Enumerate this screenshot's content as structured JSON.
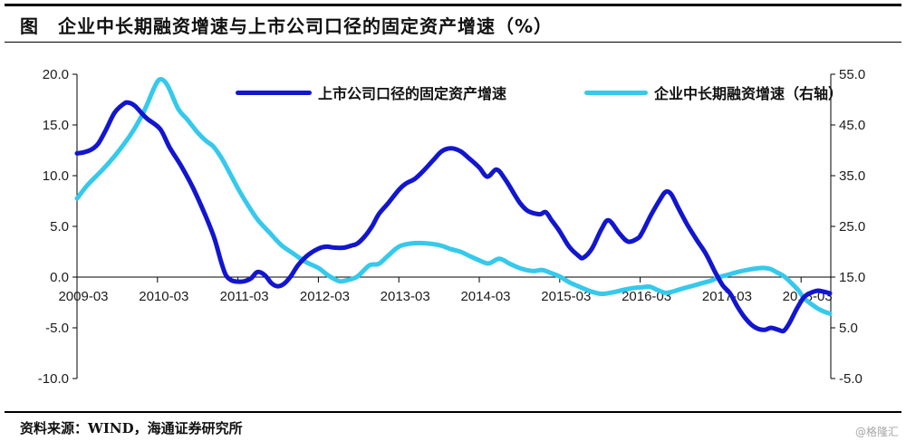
{
  "page": {
    "title": "图　企业中长期融资增速与上市公司口径的固定资产增速（%）",
    "footer": {
      "source_label": "资料来源：WIND，海通证券研究所",
      "watermark": "@格隆汇"
    }
  },
  "chart_data": {
    "type": "line",
    "title": "企业中长期融资增速与上市公司口径的固定资产增速（%）",
    "legend_position": "top-center",
    "grid": false,
    "x_axis": {
      "unit": "months since 2009-03",
      "tick_labels": [
        "2009-03",
        "2010-03",
        "2011-03",
        "2012-03",
        "2013-03",
        "2014-03",
        "2015-03",
        "2016-03",
        "2017-03",
        "2018-03"
      ],
      "tick_months": [
        0,
        12,
        24,
        36,
        48,
        60,
        72,
        84,
        96,
        108
      ],
      "data_end_month": 112.3
    },
    "left_axis": {
      "range": [
        -10,
        20
      ],
      "ticks": [
        20,
        15,
        10,
        5,
        0,
        -5,
        -10
      ],
      "tick_labels": [
        "20.0",
        "15.0",
        "10.0",
        "5.0",
        "0.0",
        "-5.0",
        "-10.0"
      ]
    },
    "right_axis": {
      "range": [
        -5,
        55
      ],
      "ticks": [
        55,
        45,
        35,
        25,
        15,
        5,
        -5
      ],
      "tick_labels": [
        "55.0",
        "45.0",
        "35.0",
        "25.0",
        "15.0",
        "5.0",
        "-5.0"
      ]
    },
    "legend": [
      {
        "label": "上市公司口径的固定资产增速",
        "color": "#1216CF",
        "axis": "left"
      },
      {
        "label": "企业中长期融资增速（右轴）",
        "color": "#35C9EC",
        "axis": "right"
      }
    ],
    "series": [
      {
        "name": "上市公司口径的固定资产增速",
        "axis": "left",
        "color": "#1216CF",
        "points": [
          [
            0,
            12.2
          ],
          [
            1,
            12.3
          ],
          [
            2.2,
            12.6
          ],
          [
            3.2,
            13.2
          ],
          [
            4.3,
            14.5
          ],
          [
            5.6,
            16.2
          ],
          [
            7,
            17.1
          ],
          [
            7.7,
            17.2
          ],
          [
            8.6,
            16.9
          ],
          [
            9.6,
            16.2
          ],
          [
            10.5,
            15.6
          ],
          [
            12.4,
            14.6
          ],
          [
            13.8,
            12.8
          ],
          [
            15.5,
            11.0
          ],
          [
            17.3,
            8.8
          ],
          [
            19.2,
            6.0
          ],
          [
            20.5,
            3.8
          ],
          [
            21.5,
            1.5
          ],
          [
            22.2,
            0.2
          ],
          [
            23,
            -0.3
          ],
          [
            24,
            -0.45
          ],
          [
            25,
            -0.4
          ],
          [
            26,
            -0.1
          ],
          [
            26.9,
            0.5
          ],
          [
            28,
            0.2
          ],
          [
            29,
            -0.6
          ],
          [
            29.9,
            -0.9
          ],
          [
            30.8,
            -0.7
          ],
          [
            31.8,
            0.0
          ],
          [
            33,
            1.2
          ],
          [
            34.5,
            2.2
          ],
          [
            36,
            2.8
          ],
          [
            37.2,
            3.0
          ],
          [
            38.4,
            2.9
          ],
          [
            39.8,
            2.9
          ],
          [
            40.9,
            3.1
          ],
          [
            41.8,
            3.3
          ],
          [
            42.9,
            4.0
          ],
          [
            44,
            5.0
          ],
          [
            45,
            6.2
          ],
          [
            46.3,
            7.2
          ],
          [
            48,
            8.6
          ],
          [
            49,
            9.2
          ],
          [
            50.4,
            9.7
          ],
          [
            51.7,
            10.5
          ],
          [
            53.1,
            11.5
          ],
          [
            54.4,
            12.4
          ],
          [
            55.8,
            12.7
          ],
          [
            57.2,
            12.4
          ],
          [
            58.5,
            11.7
          ],
          [
            60,
            10.8
          ],
          [
            61.2,
            9.9
          ],
          [
            62.6,
            10.6
          ],
          [
            63.9,
            9.6
          ],
          [
            65.3,
            8.1
          ],
          [
            66.2,
            7.2
          ],
          [
            67.3,
            6.5
          ],
          [
            69,
            6.2
          ],
          [
            69.9,
            6.4
          ],
          [
            70.8,
            5.6
          ],
          [
            72,
            4.5
          ],
          [
            73.4,
            3.0
          ],
          [
            74.8,
            2.1
          ],
          [
            75.5,
            1.9
          ],
          [
            76.8,
            2.8
          ],
          [
            78.2,
            4.7
          ],
          [
            79.3,
            5.6
          ],
          [
            80.9,
            4.3
          ],
          [
            82.2,
            3.5
          ],
          [
            83.6,
            3.8
          ],
          [
            84.3,
            4.4
          ],
          [
            85.6,
            6.1
          ],
          [
            87,
            7.7
          ],
          [
            87.8,
            8.4
          ],
          [
            88.6,
            8.2
          ],
          [
            89.7,
            6.8
          ],
          [
            91,
            5.2
          ],
          [
            92.4,
            3.7
          ],
          [
            93.8,
            2.3
          ],
          [
            95.1,
            0.6
          ],
          [
            96.3,
            -0.8
          ],
          [
            97.4,
            -1.6
          ],
          [
            98.5,
            -2.9
          ],
          [
            99.5,
            -3.9
          ],
          [
            100.6,
            -4.7
          ],
          [
            101.6,
            -5.1
          ],
          [
            102.6,
            -5.2
          ],
          [
            103.5,
            -5.0
          ],
          [
            104.6,
            -5.2
          ],
          [
            105.4,
            -5.3
          ],
          [
            106.2,
            -4.6
          ],
          [
            107.3,
            -3.2
          ],
          [
            108.4,
            -2.0
          ],
          [
            109.3,
            -1.6
          ],
          [
            110.4,
            -1.35
          ],
          [
            111.4,
            -1.45
          ],
          [
            112.3,
            -1.6
          ]
        ]
      },
      {
        "name": "企业中长期融资增速（右轴）",
        "axis": "right",
        "color": "#35C9EC",
        "points": [
          [
            0,
            30.5
          ],
          [
            1.6,
            33.2
          ],
          [
            3.9,
            36.3
          ],
          [
            6,
            39.5
          ],
          [
            8.3,
            43.7
          ],
          [
            10.1,
            48.0
          ],
          [
            11.5,
            52.3
          ],
          [
            12.4,
            54.0
          ],
          [
            13.5,
            52.8
          ],
          [
            15.1,
            48.2
          ],
          [
            16.5,
            46.0
          ],
          [
            18,
            43.5
          ],
          [
            19.3,
            41.8
          ],
          [
            20.3,
            40.8
          ],
          [
            21.5,
            38.6
          ],
          [
            22.8,
            35.5
          ],
          [
            24,
            32.5
          ],
          [
            25.2,
            29.8
          ],
          [
            26.9,
            26.4
          ],
          [
            28.7,
            23.8
          ],
          [
            30.4,
            21.4
          ],
          [
            32.3,
            19.6
          ],
          [
            34.1,
            18.0
          ],
          [
            36,
            16.8
          ],
          [
            37.5,
            15.3
          ],
          [
            39.1,
            14.2
          ],
          [
            40.3,
            14.4
          ],
          [
            41.8,
            15.1
          ],
          [
            43.6,
            17.3
          ],
          [
            45,
            17.6
          ],
          [
            46.3,
            19.1
          ],
          [
            48,
            21.0
          ],
          [
            49.7,
            21.6
          ],
          [
            51.7,
            21.7
          ],
          [
            54,
            21.3
          ],
          [
            55.8,
            20.5
          ],
          [
            57.2,
            20.0
          ],
          [
            58.5,
            19.2
          ],
          [
            60,
            18.3
          ],
          [
            61.4,
            17.7
          ],
          [
            63,
            18.6
          ],
          [
            64.6,
            17.6
          ],
          [
            66.2,
            16.7
          ],
          [
            68,
            16.2
          ],
          [
            69.4,
            16.4
          ],
          [
            70.7,
            15.8
          ],
          [
            72,
            15.1
          ],
          [
            73.4,
            14.0
          ],
          [
            75.1,
            13.0
          ],
          [
            76.8,
            12.1
          ],
          [
            78.3,
            11.7
          ],
          [
            79.9,
            12.0
          ],
          [
            81.6,
            12.5
          ],
          [
            83.2,
            12.9
          ],
          [
            84.3,
            13.0
          ],
          [
            85.4,
            13.1
          ],
          [
            86.7,
            12.4
          ],
          [
            87.8,
            11.9
          ],
          [
            89,
            12.2
          ],
          [
            90.5,
            12.8
          ],
          [
            91.9,
            13.3
          ],
          [
            93.2,
            13.8
          ],
          [
            94.6,
            14.3
          ],
          [
            95.8,
            15.0
          ],
          [
            96.9,
            15.4
          ],
          [
            98.5,
            16.0
          ],
          [
            99.9,
            16.4
          ],
          [
            101.3,
            16.7
          ],
          [
            102.4,
            16.8
          ],
          [
            103.4,
            16.6
          ],
          [
            104.3,
            16.0
          ],
          [
            105.4,
            15.2
          ],
          [
            106.5,
            13.9
          ],
          [
            107.6,
            12.4
          ],
          [
            108.4,
            10.9
          ],
          [
            109.5,
            9.7
          ],
          [
            110.5,
            8.8
          ],
          [
            111.4,
            8.2
          ],
          [
            112.3,
            7.8
          ]
        ]
      }
    ]
  }
}
